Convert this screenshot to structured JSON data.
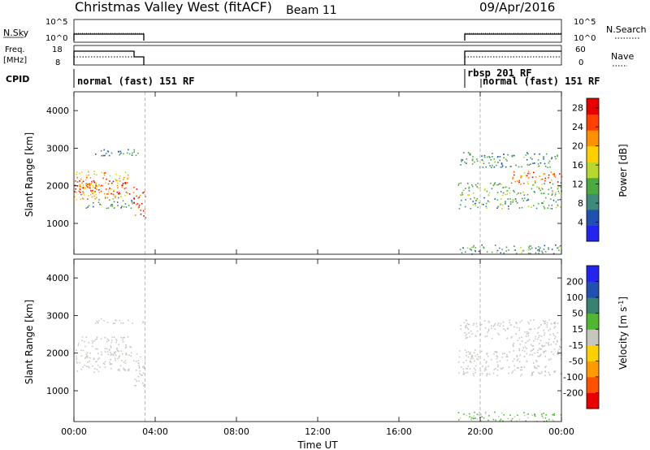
{
  "header": {
    "station": "Christmas Valley West (fitACF)",
    "beam": "Beam 11",
    "date": "09/Apr/2016"
  },
  "aux_panels": {
    "nsky_label": "N.Sky",
    "nsky_ticks": [
      "10^5",
      "10^0"
    ],
    "nsearch_label": "N.Search",
    "nsearch_ticks": [
      "10^5",
      "10^0"
    ],
    "freq_label_1": "Freq.",
    "freq_label_2": "[MHz]",
    "freq_ticks": [
      "18",
      "8"
    ],
    "nave_label": "Nave",
    "nave_ticks": [
      "60",
      "0"
    ],
    "cpid_label": "CPID"
  },
  "cpid_segments": [
    {
      "label": "normal (fast) 151 RF",
      "start_h": 0.0
    },
    {
      "label": "rbsp 201 RF",
      "start_h": 18.9
    },
    {
      "label": "normal (fast) 151 RF",
      "start_h": 20.0
    }
  ],
  "colors": {
    "power": [
      "#2424ee",
      "#2050b0",
      "#3f8a78",
      "#4aaa40",
      "#b8d830",
      "#ffd000",
      "#ff9000",
      "#ff4000",
      "#e80000"
    ],
    "velocity": [
      "#e80000",
      "#ff5000",
      "#ff9a00",
      "#ffd000",
      "#c6c6bc",
      "#50b830",
      "#3a8070",
      "#2050b0",
      "#2424ee"
    ],
    "ground_scatter": "#c8c8c0"
  },
  "chart_data": [
    {
      "type": "heatmap",
      "title": "",
      "xlabel": "Time UT",
      "ylabel": "Slant Range [km]",
      "xlim": [
        0,
        24
      ],
      "ylim": [
        180,
        4500
      ],
      "x_ticks": [
        "00:00",
        "04:00",
        "08:00",
        "12:00",
        "16:00",
        "20:00",
        "00:00"
      ],
      "y_ticks": [
        1000,
        2000,
        3000,
        4000
      ],
      "colorbar": {
        "label": "Power [dB]",
        "ticks": [
          4,
          8,
          12,
          16,
          20,
          24,
          28
        ],
        "range": [
          0,
          30
        ]
      },
      "data_gaps_h": [
        [
          3.5,
          18.9
        ]
      ],
      "dashed_markers_h": [
        3.5,
        20.0
      ],
      "bands": [
        {
          "t": [
            0.0,
            2.8
          ],
          "r": [
            1800,
            2150
          ],
          "value": 28
        },
        {
          "t": [
            0.0,
            2.8
          ],
          "r": [
            1650,
            2400
          ],
          "value": 20
        },
        {
          "t": [
            0.5,
            2.9
          ],
          "r": [
            1400,
            1650
          ],
          "value": 10
        },
        {
          "t": [
            1.0,
            3.4
          ],
          "r": [
            2800,
            3000
          ],
          "value": 8
        },
        {
          "t": [
            2.9,
            3.5
          ],
          "r": [
            1150,
            2000
          ],
          "value": 26
        },
        {
          "t": [
            18.9,
            24.0
          ],
          "r": [
            1750,
            2100
          ],
          "value": 12
        },
        {
          "t": [
            18.9,
            24.0
          ],
          "r": [
            1400,
            1700
          ],
          "value": 10
        },
        {
          "t": [
            19.0,
            23.8
          ],
          "r": [
            2500,
            2900
          ],
          "value": 9
        },
        {
          "t": [
            21.5,
            24.0
          ],
          "r": [
            2050,
            2400
          ],
          "value": 24
        },
        {
          "t": [
            18.9,
            24.0
          ],
          "r": [
            200,
            450
          ],
          "value": 10
        }
      ]
    },
    {
      "type": "heatmap",
      "title": "",
      "xlabel": "Time UT",
      "ylabel": "Slant Range [km]",
      "xlim": [
        0,
        24
      ],
      "ylim": [
        180,
        4500
      ],
      "x_ticks": [
        "00:00",
        "04:00",
        "08:00",
        "12:00",
        "16:00",
        "20:00",
        "00:00"
      ],
      "y_ticks": [
        1000,
        2000,
        3000,
        4000
      ],
      "colorbar": {
        "label": "Velocity [m s^-1]",
        "ticks": [
          200,
          100,
          50,
          15,
          -15,
          -50,
          -100,
          -200
        ],
        "range": [
          -250,
          250
        ]
      },
      "data_gaps_h": [
        [
          3.5,
          18.9
        ]
      ],
      "dashed_markers_h": [
        3.5,
        20.0
      ],
      "bands": [
        {
          "t": [
            0.0,
            2.8
          ],
          "r": [
            1500,
            2450
          ],
          "value": 0
        },
        {
          "t": [
            2.9,
            3.5
          ],
          "r": [
            1100,
            2000
          ],
          "value": 0
        },
        {
          "t": [
            1.0,
            3.4
          ],
          "r": [
            2800,
            2950
          ],
          "value": 0
        },
        {
          "t": [
            18.9,
            24.0
          ],
          "r": [
            1750,
            2100
          ],
          "value": 0
        },
        {
          "t": [
            18.9,
            24.0
          ],
          "r": [
            1400,
            1700
          ],
          "value": 0
        },
        {
          "t": [
            19.0,
            23.8
          ],
          "r": [
            2400,
            2900
          ],
          "value": 0
        },
        {
          "t": [
            21.5,
            24.0
          ],
          "r": [
            2050,
            2400
          ],
          "value": 0
        },
        {
          "t": [
            18.9,
            24.0
          ],
          "r": [
            200,
            450
          ],
          "value": 30
        }
      ]
    }
  ]
}
